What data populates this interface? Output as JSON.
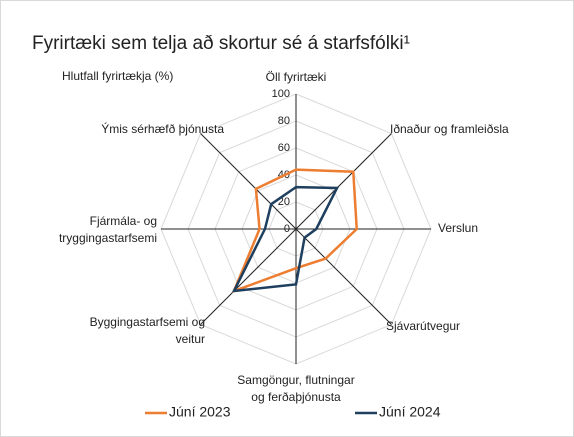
{
  "chart_data": {
    "type": "radar",
    "title": "Fyrirtæki sem telja að skortur sé á starfsfólki¹",
    "axis_label": "Hlutfall fyrirtækja (%)",
    "categories": [
      [
        "Öll fyrirtæki"
      ],
      [
        "Iðnaður og framleiðsla"
      ],
      [
        "Verslun"
      ],
      [
        "Sjávarútvegur"
      ],
      [
        "Samgöngur, flutningar",
        "og ferðaþjónusta"
      ],
      [
        "Byggingastarfsemi og",
        "veitur"
      ],
      [
        "Fjármála- og",
        "tryggingastarfsemi"
      ],
      [
        "Ýmis sérhæfð þjónusta"
      ]
    ],
    "series": [
      {
        "name": "Júní 2023",
        "color": "#ed7d31",
        "values": [
          44,
          60,
          45,
          31,
          29,
          65,
          27,
          42
        ]
      },
      {
        "name": "Júní 2024",
        "color": "#1f3f5f",
        "values": [
          31,
          43,
          15,
          9,
          41,
          65,
          23,
          26
        ]
      }
    ],
    "ylim": [
      0,
      100
    ],
    "yticks": [
      0,
      20,
      40,
      60,
      80,
      100
    ],
    "grid": true,
    "legend": "bottom"
  }
}
